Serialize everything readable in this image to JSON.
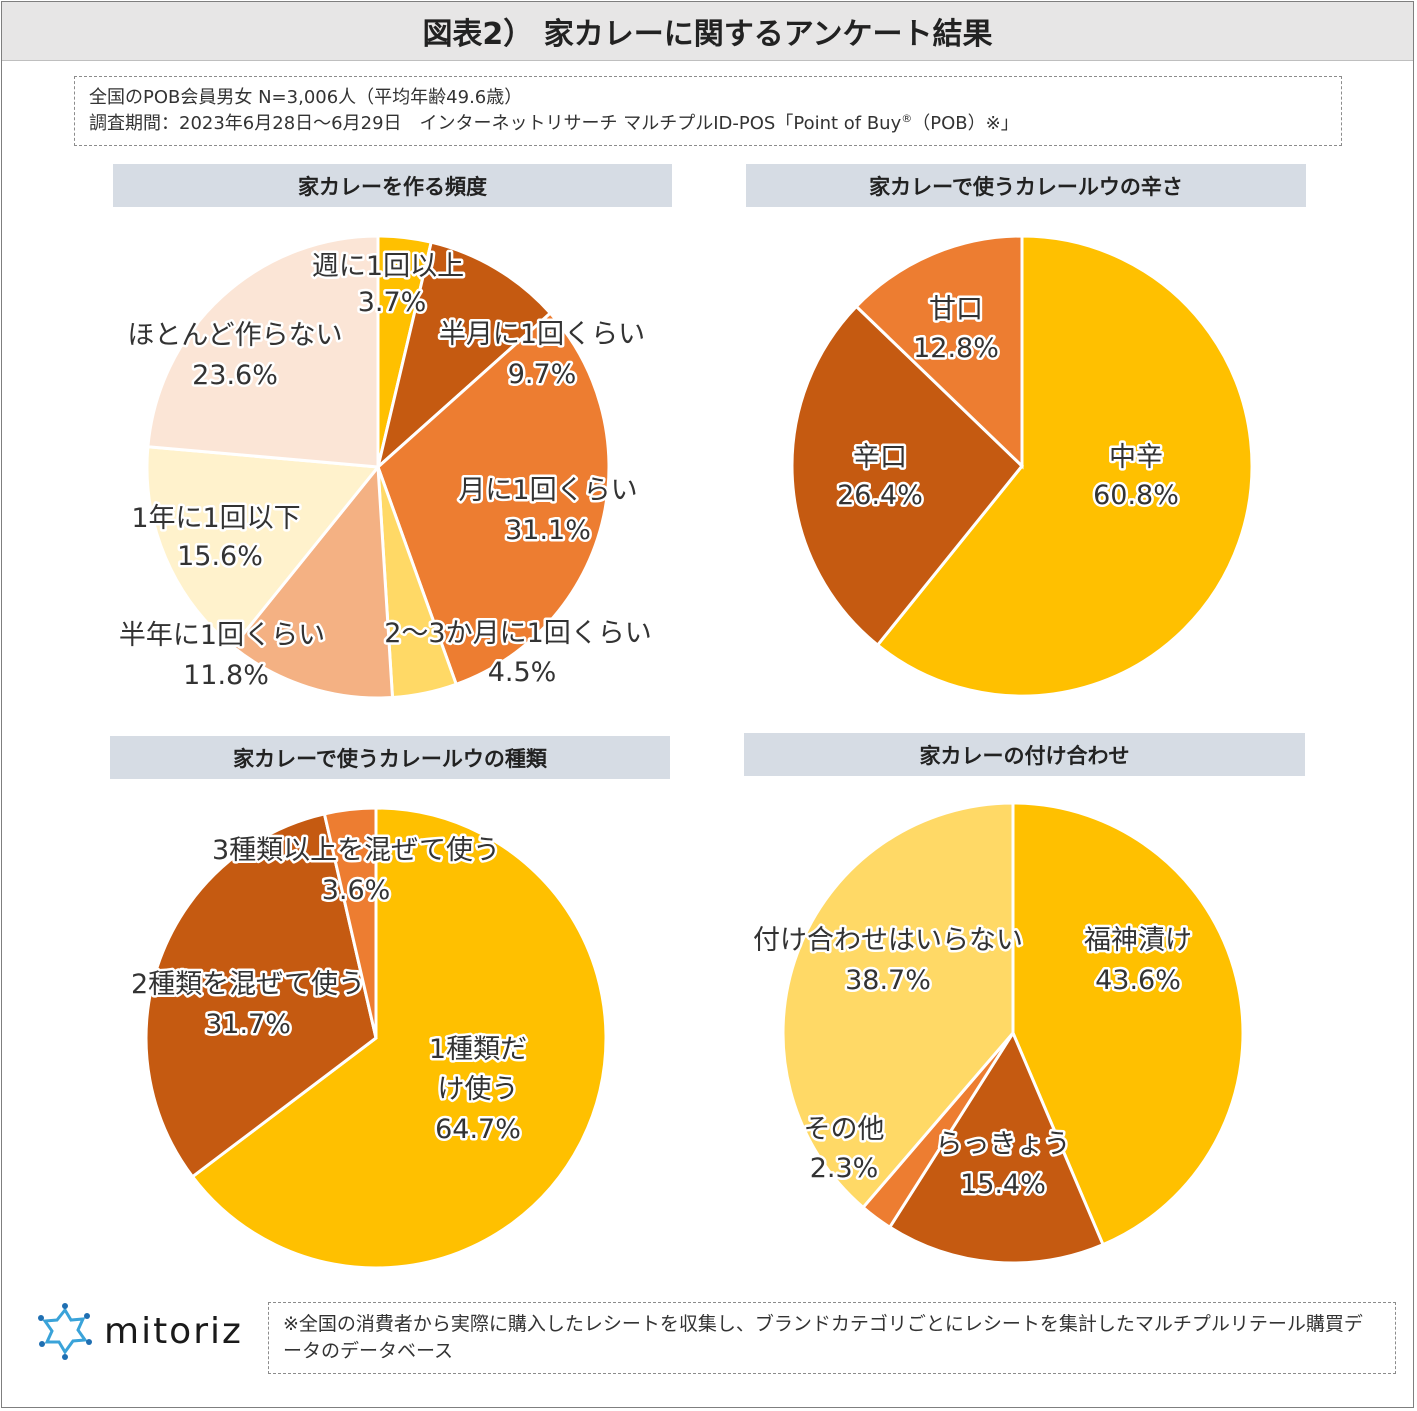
{
  "title": "図表2） 家カレーに関するアンケート結果",
  "info": {
    "line1": "全国のPOB会員男女 N=3,006人（平均年齢49.6歳）",
    "line2_main": "調査期間：2023年6月28日～6月29日　インターネットリサーチ マルチプルID-POS「Point of Buy",
    "line2_reg": "®",
    "line2_end": "（POB）※」"
  },
  "footnote": "※全国の消費者から実際に購入したレシートを収集し、ブランドカテゴリごとにレシートを集計したマルチプルリテール購買データのデータベース",
  "logo": {
    "text": "mitoriz",
    "icon": "sun-burst-logo-icon"
  },
  "colors": {
    "gold": "#ffc000",
    "dark_orange": "#c55a11",
    "orange": "#ed7d31",
    "light_yellow": "#ffd966",
    "peach": "#f4b183",
    "cream": "#fff2cc",
    "light_peach": "#fbe5d6",
    "header_bg": "#d6dce4"
  },
  "chart_data": [
    {
      "id": "frequency",
      "type": "pie",
      "title": "家カレーを作る頻度",
      "unit": "%",
      "slices": [
        {
          "name": "週に1回以上",
          "value": 3.7,
          "label": "3.7%",
          "color": "#ffc000"
        },
        {
          "name": "半月に1回くらい",
          "value": 9.7,
          "label": "9.7%",
          "color": "#c55a11"
        },
        {
          "name": "月に1回くらい",
          "value": 31.1,
          "label": "31.1%",
          "color": "#ed7d31"
        },
        {
          "name": "2～3か月に1回くらい",
          "value": 4.5,
          "label": "4.5%",
          "color": "#ffd966"
        },
        {
          "name": "半年に1回くらい",
          "value": 11.8,
          "label": "11.8%",
          "color": "#f4b183"
        },
        {
          "name": "1年に1回以下",
          "value": 15.6,
          "label": "15.6%",
          "color": "#fff2cc"
        },
        {
          "name": "ほとんど作らない",
          "value": 23.6,
          "label": "23.6%",
          "color": "#fbe5d6"
        }
      ]
    },
    {
      "id": "spiciness",
      "type": "pie",
      "title": "家カレーで使うカレールウの辛さ",
      "unit": "%",
      "slices": [
        {
          "name": "中辛",
          "value": 60.8,
          "label": "60.8%",
          "color": "#ffc000"
        },
        {
          "name": "辛口",
          "value": 26.4,
          "label": "26.4%",
          "color": "#c55a11"
        },
        {
          "name": "甘口",
          "value": 12.8,
          "label": "12.8%",
          "color": "#ed7d31"
        }
      ]
    },
    {
      "id": "roux_types",
      "type": "pie",
      "title": "家カレーで使うカレールウの種類",
      "unit": "%",
      "slices": [
        {
          "name": "1種類だけ使う",
          "value": 64.7,
          "label": "64.7%",
          "color": "#ffc000"
        },
        {
          "name": "2種類を混ぜて使う",
          "value": 31.7,
          "label": "31.7%",
          "color": "#c55a11"
        },
        {
          "name": "3種類以上を混ぜて使う",
          "value": 3.6,
          "label": "3.6%",
          "color": "#ed7d31"
        }
      ]
    },
    {
      "id": "side_dishes",
      "type": "pie",
      "title": "家カレーの付け合わせ",
      "unit": "%",
      "slices": [
        {
          "name": "福神漬け",
          "value": 43.6,
          "label": "43.6%",
          "color": "#ffc000"
        },
        {
          "name": "らっきょう",
          "value": 15.4,
          "label": "15.4%",
          "color": "#c55a11"
        },
        {
          "name": "その他",
          "value": 2.3,
          "label": "2.3%",
          "color": "#ed7d31"
        },
        {
          "name": "付け合わせはいらない",
          "value": 38.7,
          "label": "38.7%",
          "color": "#ffd966"
        }
      ]
    }
  ]
}
